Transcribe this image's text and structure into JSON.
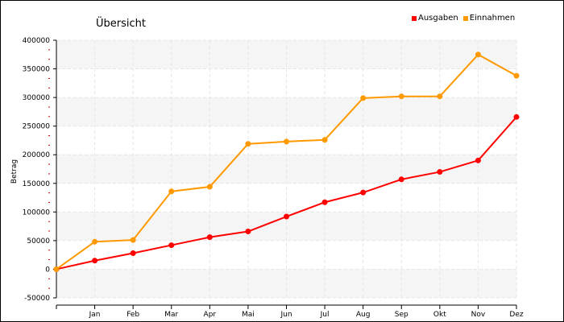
{
  "chart_data": {
    "type": "line",
    "title": "Übersicht",
    "xlabel": "",
    "ylabel": "Betrag",
    "categories": [
      "",
      "Jan",
      "Feb",
      "Mar",
      "Apr",
      "Mai",
      "Jun",
      "Jul",
      "Aug",
      "Sep",
      "Okt",
      "Nov",
      "Dez"
    ],
    "ylim": [
      -50000,
      400000
    ],
    "yticks": [
      400000,
      350000,
      300000,
      250000,
      200000,
      150000,
      100000,
      50000,
      0,
      -50000
    ],
    "ytick_labels": [
      "400000",
      "350000",
      "300000",
      "250000",
      "200000",
      "150000",
      "100000",
      "50000",
      "0",
      "-50000"
    ],
    "grid": true,
    "legend_position": "top-right",
    "series": [
      {
        "name": "Ausgaben",
        "color": "#ff0000",
        "values": [
          0,
          15000,
          28000,
          42000,
          56000,
          66000,
          92000,
          117000,
          134000,
          157000,
          170000,
          190000,
          266000
        ]
      },
      {
        "name": "Einnahmen",
        "color": "#ff9900",
        "values": [
          0,
          48000,
          51000,
          136000,
          144000,
          219000,
          223000,
          226000,
          299000,
          302000,
          302000,
          375000,
          338000
        ]
      }
    ]
  }
}
